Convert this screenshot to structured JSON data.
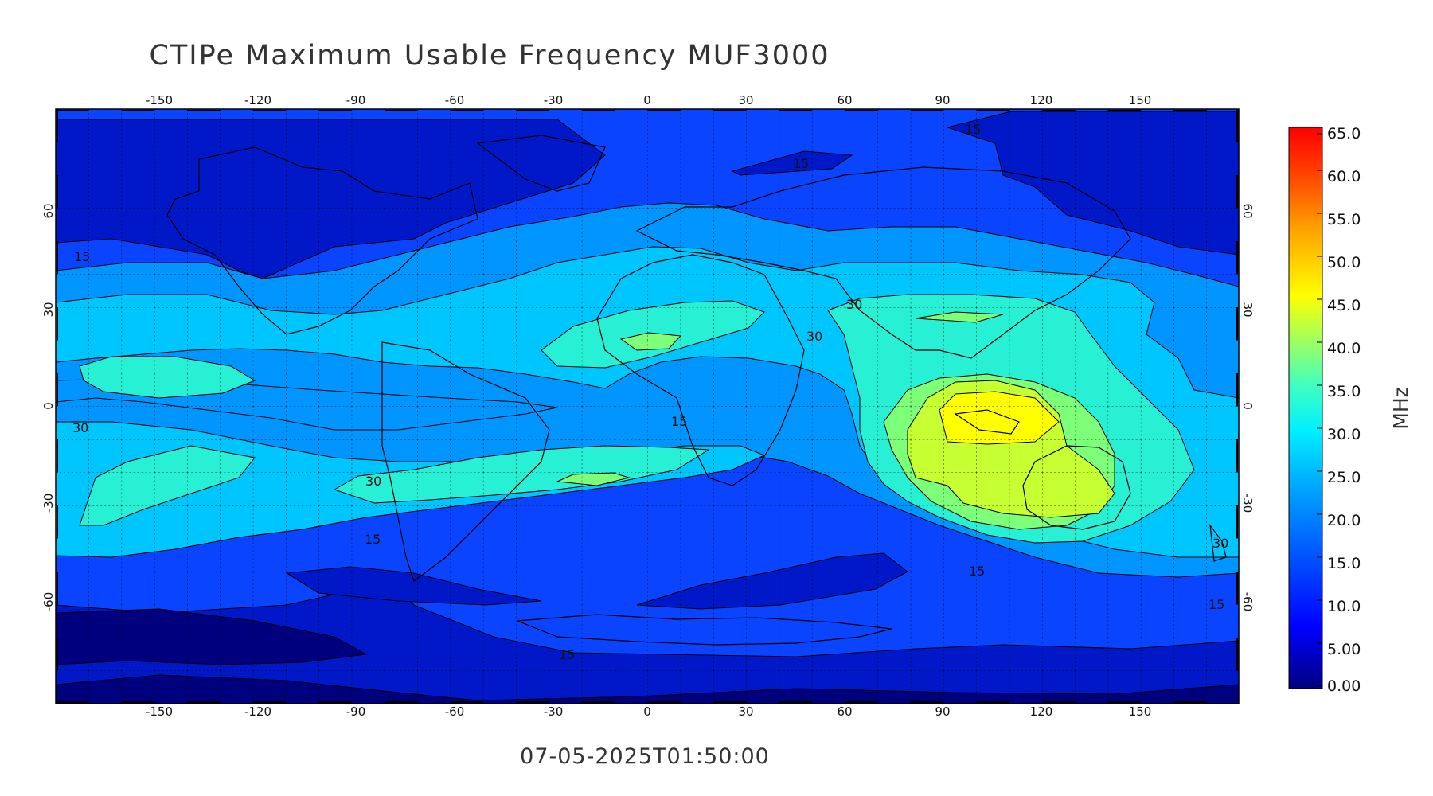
{
  "title": "CTIPe Maximum Usable Frequency MUF3000",
  "timestamp": "07-05-2025T01:50:00",
  "lon_ticks": [
    "-150",
    "-120",
    "-90",
    "-60",
    "-30",
    "0",
    "30",
    "60",
    "90",
    "120",
    "150"
  ],
  "lat_ticks": [
    "60",
    "30",
    "0",
    "-30",
    "-60"
  ],
  "colorbar": {
    "unit_label": "MHz",
    "tick_labels": [
      "0.00",
      "5.00",
      "10.0",
      "15.0",
      "20.0",
      "25.0",
      "30.0",
      "35.0",
      "40.0",
      "45.0",
      "50.0",
      "55.0",
      "60.0",
      "65.0"
    ]
  },
  "contour_labels": [
    "15",
    "15",
    "15",
    "15",
    "15",
    "15",
    "15",
    "30",
    "30",
    "30",
    "30",
    "30"
  ],
  "colors": {
    "level_0_5": "#00007f",
    "level_5_10": "#0018c8",
    "level_10_15": "#0a44ff",
    "level_15_20": "#0095ff",
    "level_20_25": "#00c6ff",
    "level_25_30": "#27f0d4",
    "level_30_35": "#7dff7a",
    "level_35_40": "#c6ff32",
    "level_40_45": "#ffff00"
  }
}
